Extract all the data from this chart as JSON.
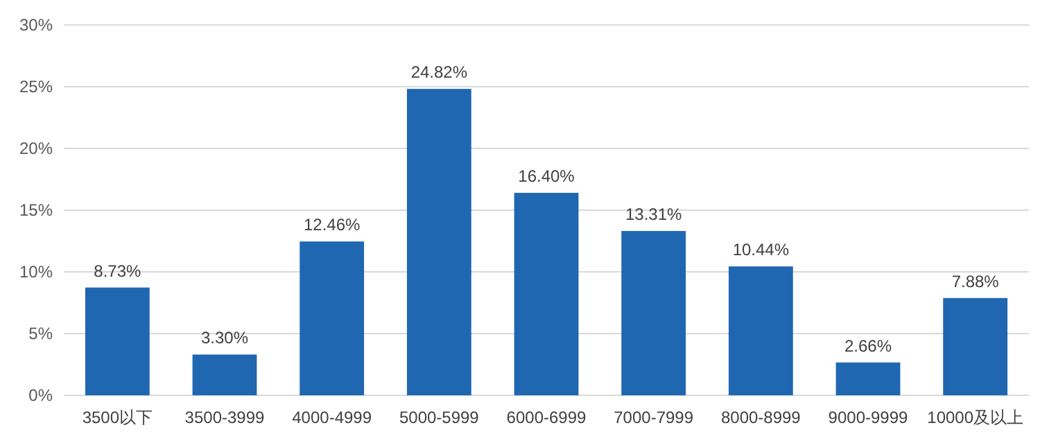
{
  "chart_data": {
    "type": "bar",
    "categories": [
      "3500以下",
      "3500-3999",
      "4000-4999",
      "5000-5999",
      "6000-6999",
      "7000-7999",
      "8000-8999",
      "9000-9999",
      "10000及以上"
    ],
    "values": [
      8.73,
      3.3,
      12.46,
      24.82,
      16.4,
      13.31,
      10.44,
      2.66,
      7.88
    ],
    "value_labels": [
      "8.73%",
      "3.30%",
      "12.46%",
      "24.82%",
      "16.40%",
      "13.31%",
      "10.44%",
      "2.66%",
      "7.88%"
    ],
    "color": "#1f67b1",
    "ylim": [
      0,
      30
    ],
    "yticks": [
      {
        "value": 0,
        "label": "0%"
      },
      {
        "value": 5,
        "label": "5%"
      },
      {
        "value": 10,
        "label": "10%"
      },
      {
        "value": 15,
        "label": "15%"
      },
      {
        "value": 20,
        "label": "20%"
      },
      {
        "value": 25,
        "label": "25%"
      },
      {
        "value": 30,
        "label": "30%"
      }
    ],
    "grid": "y"
  }
}
